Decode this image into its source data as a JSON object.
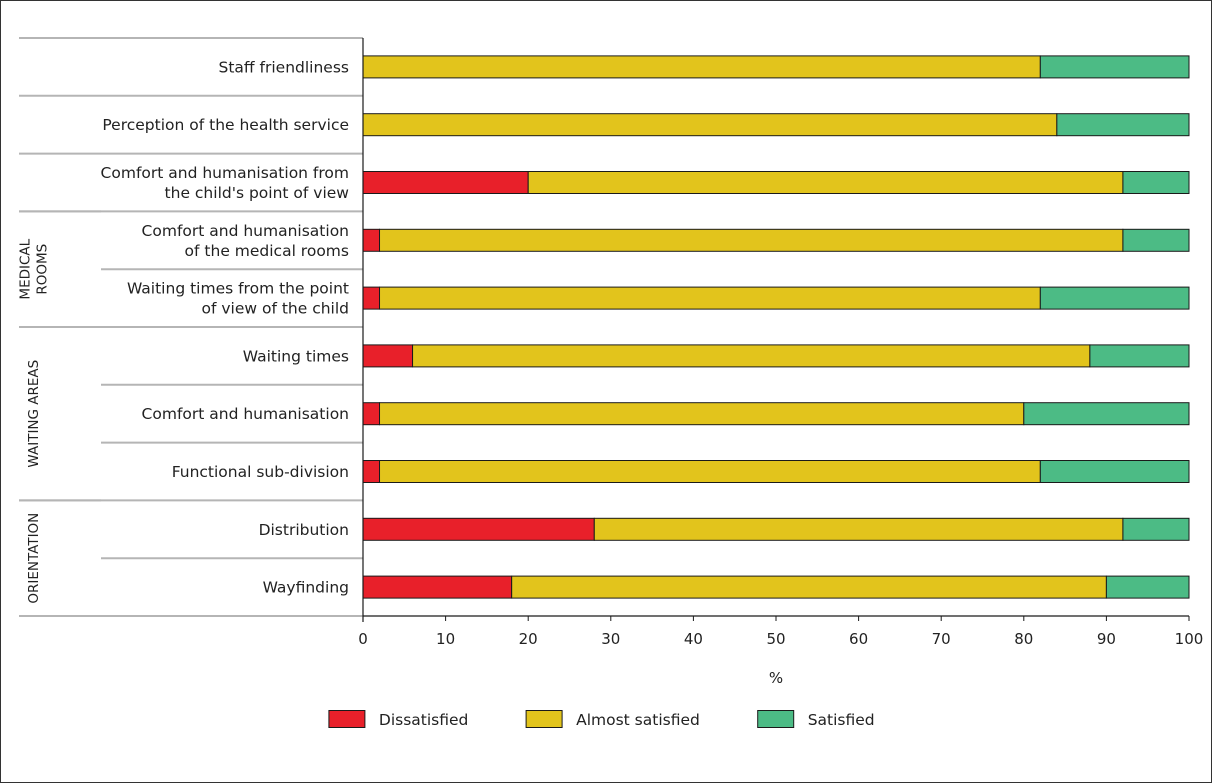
{
  "chart_data": {
    "type": "bar",
    "orientation": "horizontal",
    "stacked": true,
    "categories": [
      [
        "Staff friendliness"
      ],
      [
        "Perception of the health service"
      ],
      [
        "Comfort and humanisation from",
        "the child's point of view"
      ],
      [
        "Comfort and humanisation",
        "of the medical rooms"
      ],
      [
        "Waiting times from the point",
        "of view of the child"
      ],
      [
        "Waiting times"
      ],
      [
        "Comfort and humanisation"
      ],
      [
        "Functional sub-division"
      ],
      [
        "Distribution"
      ],
      [
        "Wayfinding"
      ]
    ],
    "groups": [
      {
        "label": [
          "MEDICAL",
          "ROOMS"
        ],
        "from": 3,
        "to": 4
      },
      {
        "label": [
          "WAITING AREAS"
        ],
        "from": 5,
        "to": 7
      },
      {
        "label": [
          "ORIENTATION"
        ],
        "from": 8,
        "to": 9
      }
    ],
    "series": [
      {
        "name": "Dissatisfied",
        "color": "#e8202a",
        "values": [
          0,
          0,
          20,
          2,
          2,
          6,
          2,
          2,
          28,
          18
        ]
      },
      {
        "name": "Almost satisfied",
        "color": "#e2c41c",
        "values": [
          82,
          84,
          72,
          90,
          80,
          82,
          78,
          80,
          64,
          72
        ]
      },
      {
        "name": "Satisfied",
        "color": "#4cbb85",
        "values": [
          18,
          16,
          8,
          8,
          18,
          12,
          20,
          18,
          8,
          10
        ]
      }
    ],
    "xlim": [
      0,
      100
    ],
    "xticks": [
      "0",
      "10",
      "20",
      "30",
      "40",
      "50",
      "60",
      "70",
      "80",
      "90",
      "100"
    ],
    "xlabel": "%",
    "legend_position": "bottom-center"
  }
}
